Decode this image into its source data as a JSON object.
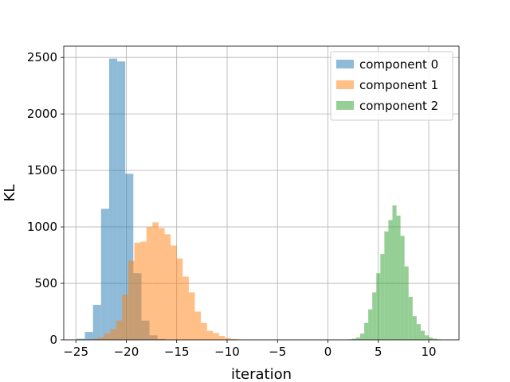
{
  "chart_data": {
    "type": "bar",
    "title": "",
    "xlabel": "iteration",
    "ylabel": "KL",
    "xlim": [
      -26.2,
      13.0
    ],
    "ylim": [
      0,
      2600
    ],
    "xticks": [
      -25,
      -20,
      -15,
      -10,
      -5,
      0,
      5,
      10
    ],
    "xtick_labels": [
      "−25",
      "−20",
      "−15",
      "−10",
      "−5",
      "0",
      "5",
      "10"
    ],
    "yticks": [
      0,
      500,
      1000,
      1500,
      2000,
      2500
    ],
    "ytick_labels": [
      "0",
      "500",
      "1000",
      "1500",
      "2000",
      "2500"
    ],
    "grid": true,
    "legend_position": "top-right",
    "series": [
      {
        "name": "component 0",
        "color": "#1f77b4",
        "alpha": 0.5,
        "bins": [
          {
            "x0": -24.9,
            "x1": -24.1,
            "count": 10
          },
          {
            "x0": -24.1,
            "x1": -23.3,
            "count": 70
          },
          {
            "x0": -23.3,
            "x1": -22.5,
            "count": 310
          },
          {
            "x0": -22.5,
            "x1": -21.7,
            "count": 1160
          },
          {
            "x0": -21.7,
            "x1": -20.9,
            "count": 2490
          },
          {
            "x0": -20.9,
            "x1": -20.1,
            "count": 2465
          },
          {
            "x0": -20.1,
            "x1": -19.3,
            "count": 1470
          },
          {
            "x0": -19.3,
            "x1": -18.5,
            "count": 590
          },
          {
            "x0": -18.5,
            "x1": -17.7,
            "count": 170
          },
          {
            "x0": -17.7,
            "x1": -16.9,
            "count": 40
          },
          {
            "x0": -16.9,
            "x1": -16.1,
            "count": 8
          }
        ]
      },
      {
        "name": "component 1",
        "color": "#ff7f0e",
        "alpha": 0.5,
        "bins": [
          {
            "x0": -24.0,
            "x1": -23.4,
            "count": 3
          },
          {
            "x0": -23.4,
            "x1": -22.8,
            "count": 10
          },
          {
            "x0": -22.8,
            "x1": -22.2,
            "count": 20
          },
          {
            "x0": -22.2,
            "x1": -21.6,
            "count": 55
          },
          {
            "x0": -21.6,
            "x1": -21.0,
            "count": 95
          },
          {
            "x0": -21.0,
            "x1": -20.4,
            "count": 170
          },
          {
            "x0": -20.4,
            "x1": -19.8,
            "count": 400
          },
          {
            "x0": -19.8,
            "x1": -19.2,
            "count": 700
          },
          {
            "x0": -19.2,
            "x1": -18.6,
            "count": 860
          },
          {
            "x0": -18.6,
            "x1": -18.0,
            "count": 870
          },
          {
            "x0": -18.0,
            "x1": -17.4,
            "count": 1000
          },
          {
            "x0": -17.4,
            "x1": -16.8,
            "count": 1040
          },
          {
            "x0": -16.8,
            "x1": -16.2,
            "count": 990
          },
          {
            "x0": -16.2,
            "x1": -15.6,
            "count": 935
          },
          {
            "x0": -15.6,
            "x1": -15.0,
            "count": 835
          },
          {
            "x0": -15.0,
            "x1": -14.4,
            "count": 720
          },
          {
            "x0": -14.4,
            "x1": -13.8,
            "count": 560
          },
          {
            "x0": -13.8,
            "x1": -13.2,
            "count": 420
          },
          {
            "x0": -13.2,
            "x1": -12.6,
            "count": 250
          },
          {
            "x0": -12.6,
            "x1": -12.0,
            "count": 150
          },
          {
            "x0": -12.0,
            "x1": -11.4,
            "count": 80
          },
          {
            "x0": -11.4,
            "x1": -10.8,
            "count": 60
          },
          {
            "x0": -10.8,
            "x1": -10.2,
            "count": 35
          },
          {
            "x0": -10.2,
            "x1": -9.6,
            "count": 15
          },
          {
            "x0": -9.6,
            "x1": -9.0,
            "count": 7
          },
          {
            "x0": -9.0,
            "x1": -8.4,
            "count": 3
          }
        ]
      },
      {
        "name": "component 2",
        "color": "#2ca02c",
        "alpha": 0.5,
        "bins": [
          {
            "x0": 2.0,
            "x1": 2.4,
            "count": 5
          },
          {
            "x0": 2.4,
            "x1": 2.8,
            "count": 10
          },
          {
            "x0": 2.8,
            "x1": 3.2,
            "count": 20
          },
          {
            "x0": 3.2,
            "x1": 3.6,
            "count": 55
          },
          {
            "x0": 3.6,
            "x1": 4.0,
            "count": 150
          },
          {
            "x0": 4.0,
            "x1": 4.4,
            "count": 270
          },
          {
            "x0": 4.4,
            "x1": 4.8,
            "count": 420
          },
          {
            "x0": 4.8,
            "x1": 5.2,
            "count": 590
          },
          {
            "x0": 5.2,
            "x1": 5.6,
            "count": 760
          },
          {
            "x0": 5.6,
            "x1": 6.0,
            "count": 960
          },
          {
            "x0": 6.0,
            "x1": 6.4,
            "count": 1060
          },
          {
            "x0": 6.4,
            "x1": 6.8,
            "count": 1190
          },
          {
            "x0": 6.8,
            "x1": 7.2,
            "count": 1100
          },
          {
            "x0": 7.2,
            "x1": 7.6,
            "count": 920
          },
          {
            "x0": 7.6,
            "x1": 8.0,
            "count": 650
          },
          {
            "x0": 8.0,
            "x1": 8.4,
            "count": 380
          },
          {
            "x0": 8.4,
            "x1": 8.8,
            "count": 210
          },
          {
            "x0": 8.8,
            "x1": 9.2,
            "count": 140
          },
          {
            "x0": 9.2,
            "x1": 9.6,
            "count": 80
          },
          {
            "x0": 9.6,
            "x1": 10.0,
            "count": 40
          },
          {
            "x0": 10.0,
            "x1": 10.4,
            "count": 20
          },
          {
            "x0": 10.4,
            "x1": 10.8,
            "count": 10
          },
          {
            "x0": 10.8,
            "x1": 11.2,
            "count": 5
          }
        ]
      }
    ]
  }
}
